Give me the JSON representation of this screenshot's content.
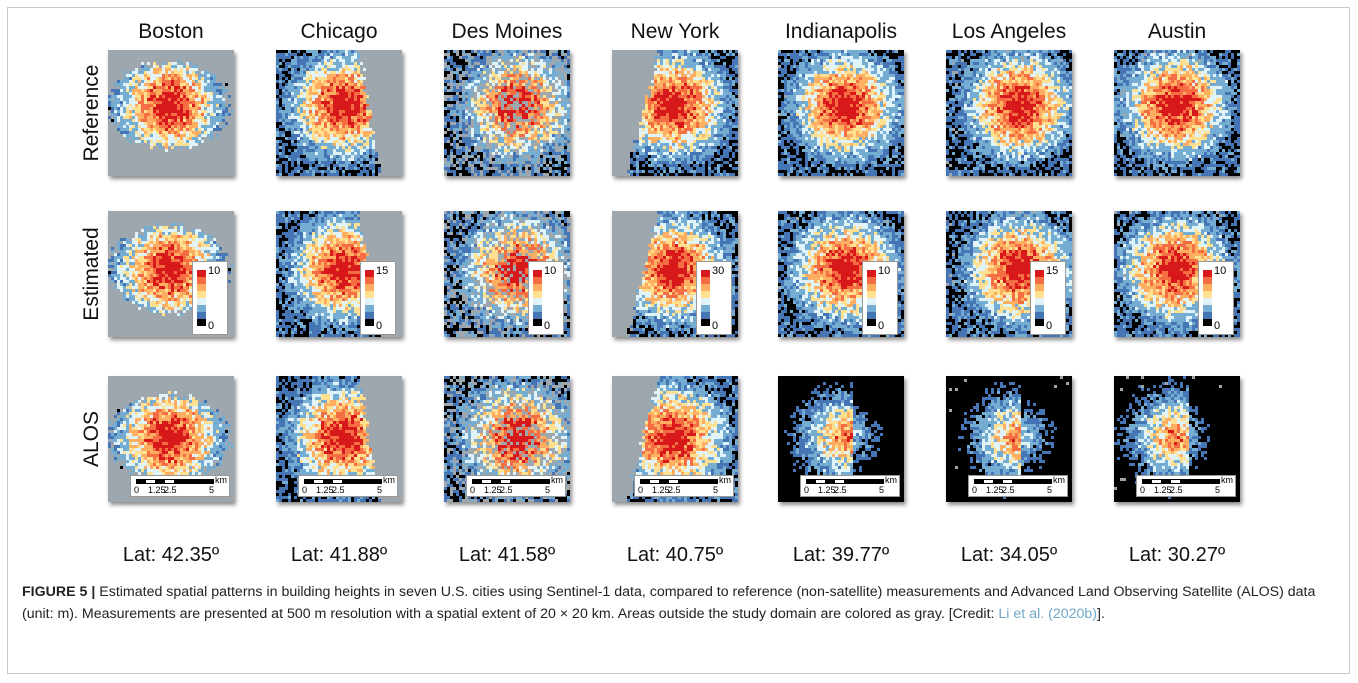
{
  "figure": {
    "cities": [
      "Boston",
      "Chicago",
      "Des Moines",
      "New York",
      "Indianapolis",
      "Los Angeles",
      "Austin"
    ],
    "row_labels": [
      "Reference",
      "Estimated",
      "ALOS"
    ],
    "latitudes": [
      "Lat: 42.35º",
      "Lat: 41.88º",
      "Lat: 41.58º",
      "Lat: 40.75º",
      "Lat: 39.77º",
      "Lat: 34.05º",
      "Lat: 30.27º"
    ],
    "colorbar_max": [
      "10",
      "15",
      "10",
      "30",
      "10",
      "15",
      "10"
    ],
    "colorbar_min": "0",
    "scalebar": {
      "unit": "km",
      "ticks": [
        "0",
        "1.25",
        "2.5",
        "5"
      ]
    },
    "colors": {
      "outside_domain": "#9ea6ae",
      "ramp": [
        "#d7191c",
        "#f46d43",
        "#fdae61",
        "#fee090",
        "#e0f3f8",
        "#74add1",
        "#4575b4",
        "#000000"
      ]
    }
  },
  "caption": {
    "label": "FIGURE 5 |",
    "text": " Estimated spatial patterns in building heights in seven U.S. cities using Sentinel-1 data, compared to reference (non-satellite) measurements and Advanced Land Observing Satellite (ALOS) data (unit: m). Measurements are presented at 500 m resolution with a spatial extent of 20 × 20 km. Areas outside the study domain are colored as gray. [Credit: ",
    "citation": "Li et al. (2020b)",
    "end": "]."
  }
}
